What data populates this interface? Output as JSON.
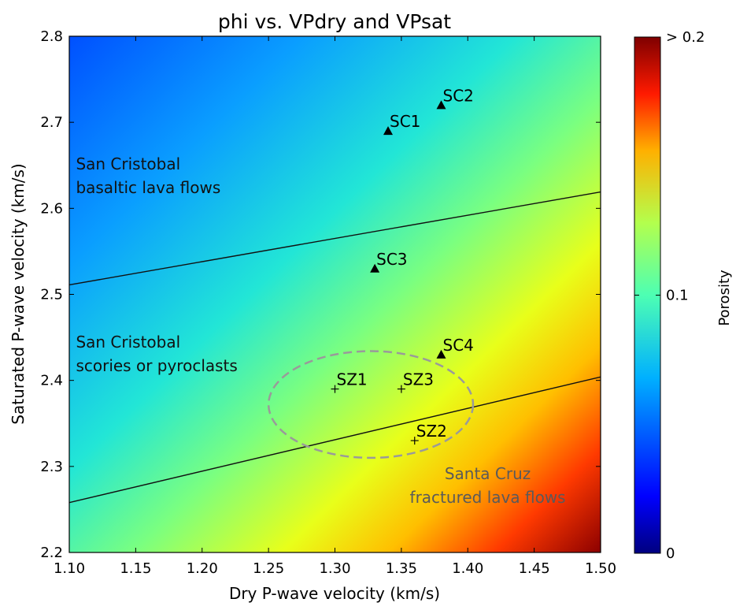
{
  "chart_data": {
    "type": "heatmap",
    "title": "phi vs. VPdry and VPsat",
    "xlabel": "Dry P-wave velocity (km/s)",
    "ylabel": "Saturated P-wave velocity (km/s)",
    "xlim": [
      1.1,
      1.5
    ],
    "ylim": [
      2.2,
      2.8
    ],
    "xticks": [
      "1.10",
      "1.15",
      "1.20",
      "1.25",
      "1.30",
      "1.35",
      "1.40",
      "1.45",
      "1.50"
    ],
    "yticks": [
      "2.2",
      "2.3",
      "2.4",
      "2.5",
      "2.6",
      "2.7",
      "2.8"
    ],
    "colorbar": {
      "label": "Porosity",
      "range": [
        0,
        0.2
      ],
      "ticks": [
        "0",
        "0.1",
        "> 0.2"
      ],
      "colormap": "jet"
    },
    "boundary_lines": [
      {
        "x": [
          1.1,
          1.5
        ],
        "y": [
          2.511,
          2.619
        ]
      },
      {
        "x": [
          1.1,
          1.5
        ],
        "y": [
          2.258,
          2.404
        ]
      }
    ],
    "points": [
      {
        "label": "SC1",
        "x": 1.34,
        "y": 2.69,
        "marker": "triangle"
      },
      {
        "label": "SC2",
        "x": 1.38,
        "y": 2.72,
        "marker": "triangle"
      },
      {
        "label": "SC3",
        "x": 1.33,
        "y": 2.53,
        "marker": "triangle"
      },
      {
        "label": "SC4",
        "x": 1.38,
        "y": 2.43,
        "marker": "triangle"
      },
      {
        "label": "SZ1",
        "x": 1.3,
        "y": 2.39,
        "marker": "plus"
      },
      {
        "label": "SZ2",
        "x": 1.36,
        "y": 2.33,
        "marker": "plus"
      },
      {
        "label": "SZ3",
        "x": 1.35,
        "y": 2.39,
        "marker": "plus"
      }
    ],
    "ellipse": {
      "cx": 1.327,
      "cy": 2.372,
      "rx": 0.077,
      "ry": 0.062,
      "style": "dashed"
    },
    "annotations": [
      {
        "lines": [
          "San Cristobal",
          "basaltic lava flows"
        ],
        "x": 1.105,
        "y": 2.645
      },
      {
        "lines": [
          "San Cristobal",
          "scories or pyroclasts"
        ],
        "x": 1.105,
        "y": 2.438
      },
      {
        "lines": [
          "Santa Cruz",
          "fractured lava flows"
        ],
        "x": 1.415,
        "y": 2.285,
        "align": "center"
      }
    ]
  }
}
